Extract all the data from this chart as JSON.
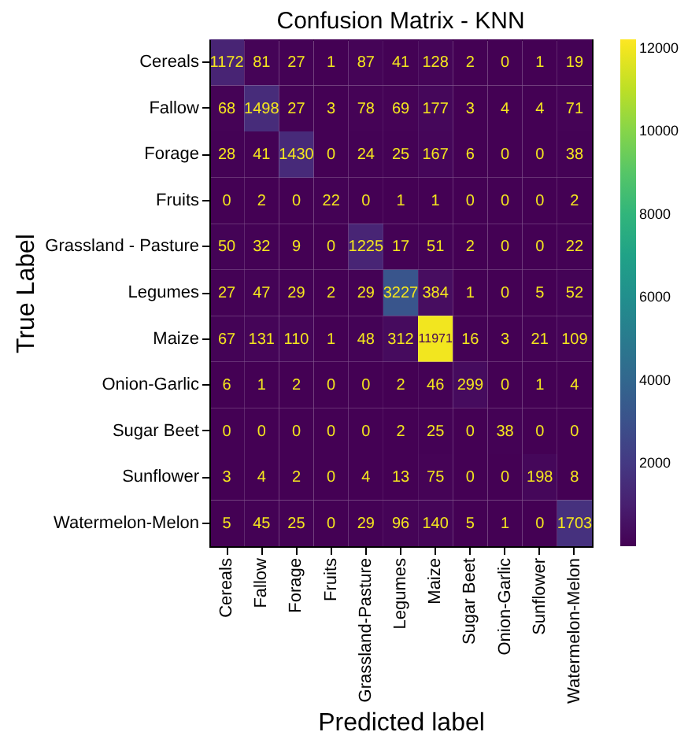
{
  "chart_data": {
    "type": "heatmap",
    "title": "Confusion Matrix - KNN",
    "xlabel": "Predicted label",
    "ylabel": "True Label",
    "categories": [
      "Cereals",
      "Fallow",
      "Forage",
      "Fruits",
      "Grassland-Pasture",
      "Legumes",
      "Maize",
      "Sugar Beet",
      "Onion-Garlic",
      "Sunflower",
      "Watermelon-Melon"
    ],
    "y_categories": [
      "Cereals",
      "Fallow",
      "Forage",
      "Fruits",
      "Grassland - Pasture",
      "Legumes",
      "Maize",
      "Onion-Garlic",
      "Sugar Beet",
      "Sunflower",
      "Watermelon-Melon"
    ],
    "cells": [
      [
        1172,
        81,
        27,
        1,
        87,
        41,
        128,
        2,
        0,
        1,
        19
      ],
      [
        68,
        1498,
        27,
        3,
        78,
        69,
        177,
        3,
        4,
        4,
        71
      ],
      [
        28,
        41,
        1430,
        0,
        24,
        25,
        167,
        6,
        0,
        0,
        38
      ],
      [
        0,
        2,
        0,
        22,
        0,
        1,
        1,
        0,
        0,
        0,
        2
      ],
      [
        50,
        32,
        9,
        0,
        1225,
        17,
        51,
        2,
        0,
        0,
        22
      ],
      [
        27,
        47,
        29,
        2,
        29,
        3227,
        384,
        1,
        0,
        5,
        52
      ],
      [
        67,
        131,
        110,
        1,
        48,
        312,
        11971,
        16,
        3,
        21,
        109
      ],
      [
        6,
        1,
        2,
        0,
        0,
        2,
        46,
        299,
        0,
        1,
        4
      ],
      [
        0,
        0,
        0,
        0,
        0,
        2,
        25,
        0,
        38,
        0,
        0
      ],
      [
        3,
        4,
        2,
        0,
        4,
        13,
        75,
        0,
        0,
        198,
        8
      ],
      [
        5,
        45,
        25,
        0,
        29,
        96,
        140,
        5,
        1,
        0,
        1703
      ]
    ],
    "clim": [
      0,
      12200
    ],
    "cticks": [
      2000,
      4000,
      6000,
      8000,
      10000,
      12000
    ],
    "data_labels": true
  }
}
